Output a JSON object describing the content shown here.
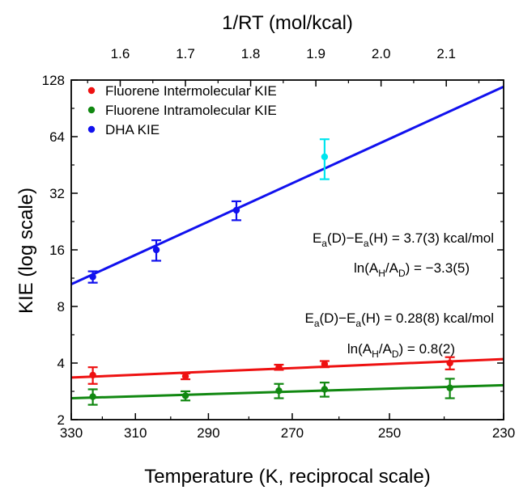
{
  "chart_data": {
    "type": "scatter",
    "title": "",
    "xlabel": "Temperature (K, reciprocal scale)",
    "ylabel": "KIE (log scale)",
    "x2label": "1/RT (mol/kcal)",
    "xlim": [
      330,
      230
    ],
    "ylim": [
      2,
      128
    ],
    "y_scale": "log2",
    "x_scale": "reciprocal",
    "x_ticks": [
      330,
      310,
      290,
      270,
      250,
      230
    ],
    "x_tick_labels": [
      "330",
      "310",
      "290",
      "270",
      "250",
      "230"
    ],
    "y_ticks": [
      2,
      4,
      8,
      16,
      32,
      64,
      128
    ],
    "y_tick_labels": [
      "2",
      "4",
      "8",
      "16",
      "32",
      "64",
      "128"
    ],
    "x2_ticks": [
      1.6,
      1.7,
      1.8,
      1.9,
      2.0,
      2.1
    ],
    "x2_tick_labels": [
      "1.6",
      "1.7",
      "1.8",
      "1.9",
      "2.0",
      "2.1"
    ],
    "grid": false,
    "legend_position": "top-left",
    "series": [
      {
        "name": "Fluorene Intermolecular KIE",
        "color": "#ee1111",
        "points": [
          {
            "x": 323,
            "y": 3.45,
            "err": 0.35
          },
          {
            "x": 296,
            "y": 3.4,
            "err": 0.12
          },
          {
            "x": 273,
            "y": 3.8,
            "err": 0.12
          },
          {
            "x": 263,
            "y": 3.95,
            "err": 0.15
          },
          {
            "x": 239,
            "y": 4.0,
            "err": 0.3
          }
        ],
        "fit": {
          "x": [
            330,
            230
          ],
          "y": [
            3.35,
            4.2
          ]
        }
      },
      {
        "name": "Fluorene Intramolecular KIE",
        "color": "#118811",
        "points": [
          {
            "x": 323,
            "y": 2.65,
            "err": 0.25
          },
          {
            "x": 296,
            "y": 2.68,
            "err": 0.15
          },
          {
            "x": 273,
            "y": 2.85,
            "err": 0.25
          },
          {
            "x": 263,
            "y": 2.9,
            "err": 0.25
          },
          {
            "x": 239,
            "y": 2.95,
            "err": 0.35
          }
        ],
        "fit": {
          "x": [
            330,
            230
          ],
          "y": [
            2.6,
            3.05
          ]
        }
      },
      {
        "name": "DHA KIE",
        "color": "#1111ee",
        "points": [
          {
            "x": 323,
            "y": 11.5,
            "err": 0.8
          },
          {
            "x": 304,
            "y": 16.0,
            "err": 2.0
          },
          {
            "x": 283,
            "y": 26.0,
            "err": 3.0
          }
        ],
        "fit": {
          "x": [
            330,
            230
          ],
          "y": [
            10.5,
            118
          ]
        }
      },
      {
        "color": "#00e5ee",
        "points": [
          {
            "x": 263,
            "y": 50.0,
            "err": 12.0
          }
        ]
      }
    ],
    "annotations": [
      {
        "main": "E",
        "sub": "a",
        "text": "(D)−E",
        "sub2": "a",
        "tail": "(H) =  3.7(3) kcal/mol"
      },
      {
        "lead": "ln(A",
        "sub": "H",
        "mid": "/A",
        "sub2": "D",
        "tail": ") = −3.3(5)"
      },
      {
        "main": "E",
        "sub": "a",
        "text": "(D)−E",
        "sub2": "a",
        "tail": "(H) = 0.28(8) kcal/mol"
      },
      {
        "lead": "ln(A",
        "sub": "H",
        "mid": "/A",
        "sub2": "D",
        "tail": ") = 0.8(2)"
      }
    ]
  }
}
